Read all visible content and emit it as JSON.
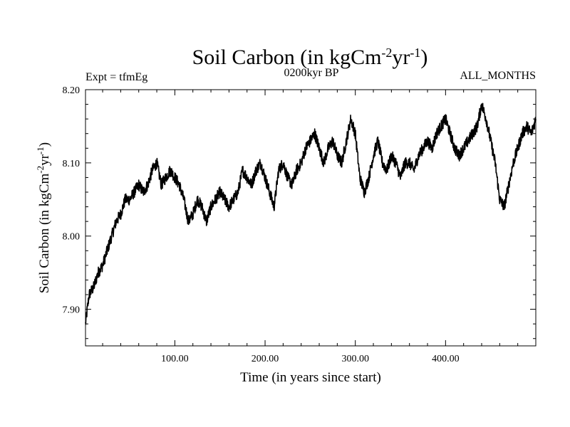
{
  "header": {
    "title_main": "Soil Carbon (in kgCm",
    "title_sup1": "-2",
    "title_mid": "yr",
    "title_sup2": "-1",
    "title_end": ")",
    "left_label": "Expt = tfmEg",
    "center_label": "0200kyr BP",
    "right_label": "ALL_MONTHS"
  },
  "colors": {
    "line": "#000000",
    "background": "#ffffff",
    "axis": "#000000"
  },
  "chart_data": {
    "type": "line",
    "title": "Soil Carbon (in kgCm-2yr-1)",
    "xlabel": "Time (in years since start)",
    "ylabel": "Soil Carbon (in kgCm-2yr-1)",
    "xlim": [
      1,
      500
    ],
    "ylim": [
      7.85,
      8.2
    ],
    "x_ticks": [
      100,
      200,
      300,
      400
    ],
    "x_tick_labels": [
      "100.00",
      "200.00",
      "300.00",
      "400.00"
    ],
    "y_ticks": [
      7.9,
      8.0,
      8.1,
      8.2
    ],
    "y_tick_labels": [
      "7.90",
      "8.00",
      "8.10",
      "8.20"
    ],
    "xlabel_parts": {
      "text": "Time (in years since start)"
    },
    "ylabel_parts": {
      "main": "Soil Carbon (in kgCm",
      "sup1": "-2",
      "mid": "yr",
      "sup2": "-1",
      "end": ")"
    },
    "series": [
      {
        "name": "Soil Carbon",
        "x": [
          1,
          5,
          10,
          15,
          20,
          25,
          30,
          35,
          40,
          45,
          50,
          55,
          60,
          65,
          70,
          75,
          80,
          85,
          90,
          95,
          100,
          105,
          110,
          115,
          120,
          125,
          130,
          135,
          140,
          145,
          150,
          155,
          160,
          165,
          170,
          175,
          180,
          185,
          190,
          195,
          200,
          205,
          210,
          215,
          220,
          225,
          230,
          235,
          240,
          245,
          250,
          255,
          260,
          265,
          270,
          275,
          280,
          285,
          290,
          295,
          300,
          305,
          310,
          315,
          320,
          325,
          330,
          335,
          340,
          345,
          350,
          355,
          360,
          365,
          370,
          375,
          380,
          385,
          390,
          395,
          400,
          405,
          410,
          415,
          420,
          425,
          430,
          435,
          440,
          445,
          450,
          455,
          460,
          465,
          470,
          475,
          480,
          485,
          490,
          495,
          500
        ],
        "values": [
          7.88,
          7.92,
          7.93,
          7.95,
          7.96,
          7.98,
          8.0,
          8.02,
          8.03,
          8.05,
          8.05,
          8.06,
          8.07,
          8.06,
          8.07,
          8.09,
          8.1,
          8.07,
          8.08,
          8.09,
          8.08,
          8.07,
          8.05,
          8.02,
          8.03,
          8.05,
          8.04,
          8.02,
          8.04,
          8.05,
          8.06,
          8.05,
          8.04,
          8.05,
          8.06,
          8.09,
          8.08,
          8.07,
          8.09,
          8.1,
          8.08,
          8.06,
          8.04,
          8.09,
          8.1,
          8.08,
          8.07,
          8.09,
          8.1,
          8.12,
          8.13,
          8.14,
          8.12,
          8.1,
          8.12,
          8.13,
          8.11,
          8.1,
          8.13,
          8.16,
          8.14,
          8.08,
          8.06,
          8.08,
          8.11,
          8.13,
          8.1,
          8.09,
          8.11,
          8.1,
          8.08,
          8.1,
          8.1,
          8.09,
          8.11,
          8.12,
          8.13,
          8.12,
          8.14,
          8.15,
          8.16,
          8.14,
          8.12,
          8.11,
          8.12,
          8.13,
          8.14,
          8.15,
          8.18,
          8.16,
          8.13,
          8.1,
          8.05,
          8.04,
          8.07,
          8.1,
          8.12,
          8.14,
          8.15,
          8.14,
          8.16
        ]
      }
    ]
  }
}
